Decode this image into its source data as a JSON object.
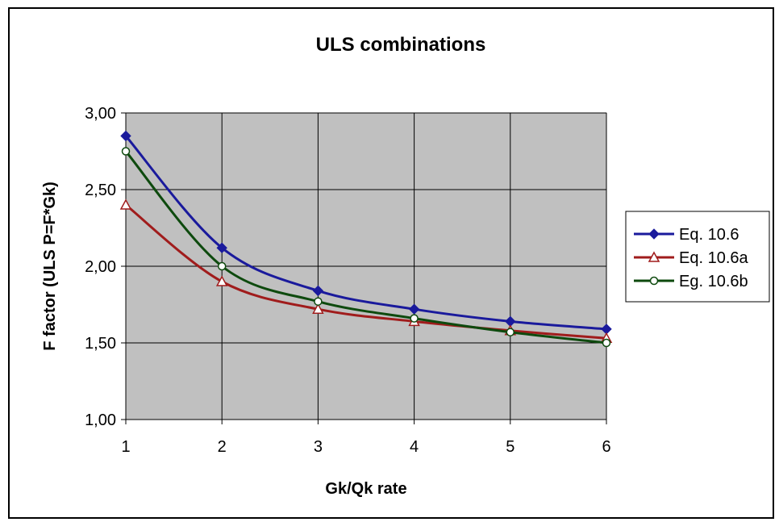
{
  "chart_data": {
    "type": "line",
    "title": "ULS combinations",
    "xlabel": "Gk/Qk rate",
    "ylabel": "F factor (ULS P=F*Gk)",
    "x": [
      1,
      2,
      3,
      4,
      5,
      6
    ],
    "xlim": [
      1,
      6
    ],
    "ylim": [
      1.0,
      3.0
    ],
    "y_ticks": [
      1.0,
      1.5,
      2.0,
      2.5,
      3.0
    ],
    "y_tick_labels": [
      "1,00",
      "1,50",
      "2,00",
      "2,50",
      "3,00"
    ],
    "x_tick_labels": [
      "1",
      "2",
      "3",
      "4",
      "5",
      "6"
    ],
    "grid": true,
    "plot_background": "#c0c0c0",
    "legend_position": "right",
    "series": [
      {
        "name": "Eq. 10.6",
        "values": [
          2.85,
          2.12,
          1.84,
          1.72,
          1.64,
          1.59
        ],
        "color": "#1a1a9c",
        "marker": "diamond"
      },
      {
        "name": "Eq. 10.6a",
        "values": [
          2.4,
          1.9,
          1.72,
          1.64,
          1.58,
          1.53
        ],
        "color": "#a01c1c",
        "marker": "triangle"
      },
      {
        "name": "Eg. 10.6b",
        "values": [
          2.75,
          2.0,
          1.77,
          1.66,
          1.57,
          1.5
        ],
        "color": "#0e4a0e",
        "marker": "circle"
      }
    ]
  }
}
